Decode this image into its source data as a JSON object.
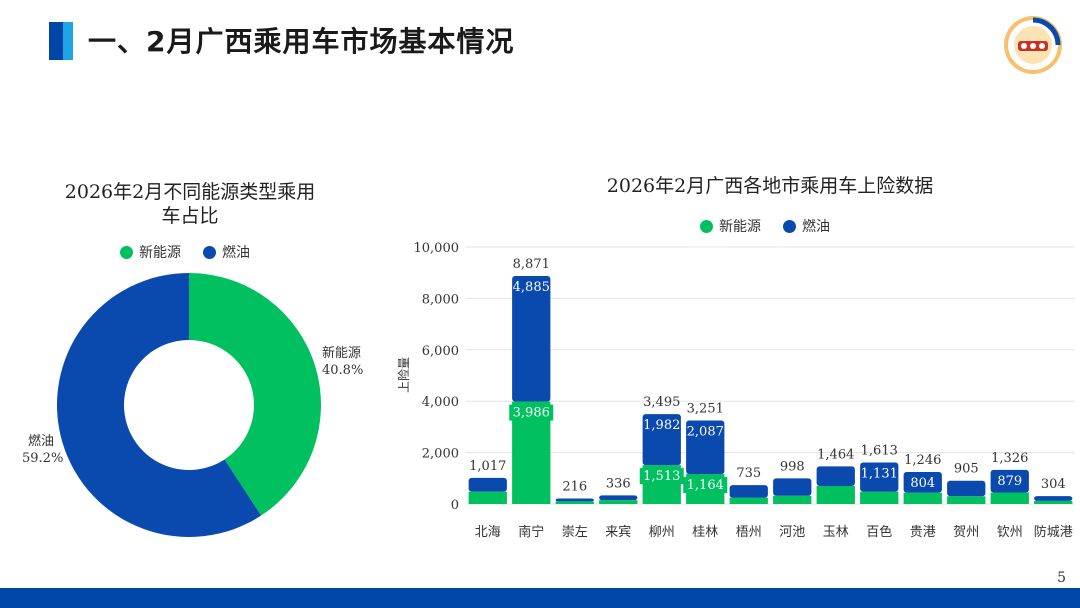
{
  "header": {
    "title": "一、2月广西乘用车市场基本情况"
  },
  "colors": {
    "nev": "#00c060",
    "fuel": "#0a49ad",
    "accent": "#0046a8"
  },
  "legend": {
    "nev": "新能源",
    "fuel": "燃油"
  },
  "chart_data": [
    {
      "type": "pie",
      "title_line1": "2026年2月不同能源类型乘用",
      "title_line2": "车占比",
      "slices": [
        {
          "name": "新能源",
          "value": 40.8,
          "label": "40.8%"
        },
        {
          "name": "燃油",
          "value": 59.2,
          "label": "59.2%"
        }
      ]
    },
    {
      "type": "bar",
      "stacked": true,
      "title": "2026年2月广西各地市乘用车上险数据",
      "ylabel": "上险量",
      "ylim": [
        0,
        10000
      ],
      "yticks": [
        "0",
        "2,000",
        "4,000",
        "6,000",
        "8,000",
        "10,000"
      ],
      "categories": [
        "北海",
        "南宁",
        "崇左",
        "来宾",
        "柳州",
        "桂林",
        "梧州",
        "河池",
        "玉林",
        "百色",
        "贵港",
        "贺州",
        "钦州",
        "防城港"
      ],
      "series": [
        {
          "name": "新能源",
          "values": [
            480,
            3986,
            100,
            150,
            1513,
            1164,
            250,
            320,
            700,
            482,
            442,
            300,
            447,
            120
          ],
          "labels": [
            "",
            "3,986",
            "",
            "",
            "1,513",
            "1,164",
            "",
            "",
            "",
            "",
            "",
            "",
            "",
            ""
          ]
        },
        {
          "name": "燃油",
          "values": [
            537,
            4885,
            116,
            186,
            1982,
            2087,
            485,
            678,
            764,
            1131,
            804,
            605,
            879,
            184
          ],
          "labels": [
            "",
            "4,885",
            "",
            "",
            "1,982",
            "2,087",
            "",
            "",
            "",
            "1,131",
            "804",
            "",
            "879",
            ""
          ]
        }
      ],
      "totals": [
        "1,017",
        "8,871",
        "216",
        "336",
        "3,495",
        "3,251",
        "735",
        "998",
        "1,464",
        "1,613",
        "1,246",
        "905",
        "1,326",
        "304"
      ]
    }
  ],
  "footer": {
    "page_number": "5"
  }
}
